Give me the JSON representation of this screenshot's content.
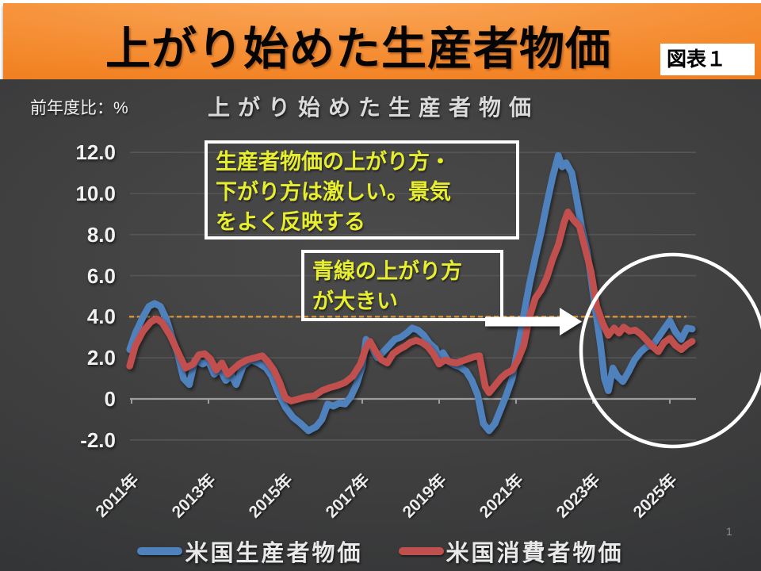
{
  "slide": {
    "title": "上がり始めた生産者物価",
    "figure_label": "図表１",
    "page_number": "1"
  },
  "chart": {
    "title": "上がり始めた生産者物価",
    "unit_label": "前年度比：%",
    "annotations": {
      "note1": "生産者物価の上がり方・\n下がり方は激しい。景気\nをよく反映する",
      "note2": "青線の上がり方\nが大きい"
    },
    "legend": [
      {
        "label": "米国生産者物価",
        "color": "#4f81bd"
      },
      {
        "label": "米国消費者物価",
        "color": "#c0504d"
      }
    ]
  },
  "chart_data": {
    "type": "line",
    "title": "上がり始めた生産者物価",
    "ylabel": "前年度比：%",
    "xlabel": "",
    "ylim": [
      -3,
      13
    ],
    "xlim": [
      2010.9,
      2025.7
    ],
    "grid": true,
    "legend_position": "bottom",
    "y_ticks": [
      {
        "label": "12.0",
        "value": 12
      },
      {
        "label": "10.0",
        "value": 10
      },
      {
        "label": "8.0",
        "value": 8
      },
      {
        "label": "6.0",
        "value": 6
      },
      {
        "label": "4.0",
        "value": 4
      },
      {
        "label": "2.0",
        "value": 2
      },
      {
        "label": "0",
        "value": 0
      },
      {
        "label": "-2.0",
        "value": -2
      }
    ],
    "x_ticks": [
      {
        "label": "2011年",
        "year": 2011
      },
      {
        "label": "2013年",
        "year": 2013
      },
      {
        "label": "2015年",
        "year": 2015
      },
      {
        "label": "2017年",
        "year": 2017
      },
      {
        "label": "2019年",
        "year": 2019
      },
      {
        "label": "2021年",
        "year": 2021
      },
      {
        "label": "2023年",
        "year": 2023
      },
      {
        "label": "2025年",
        "year": 2025
      }
    ],
    "threshold_line": {
      "value": 4.0,
      "color": "#e59a35",
      "style": "dashed"
    },
    "series": [
      {
        "name": "米国生産者物価",
        "color": "#4f81bd",
        "points": [
          [
            2010.95,
            2.4
          ],
          [
            2011.1,
            3.2
          ],
          [
            2011.3,
            4.0
          ],
          [
            2011.45,
            4.5
          ],
          [
            2011.6,
            4.65
          ],
          [
            2011.75,
            4.5
          ],
          [
            2011.9,
            3.9
          ],
          [
            2012.05,
            3.0
          ],
          [
            2012.2,
            2.2
          ],
          [
            2012.35,
            1.0
          ],
          [
            2012.5,
            0.7
          ],
          [
            2012.65,
            1.9
          ],
          [
            2012.85,
            1.7
          ],
          [
            2013.0,
            1.85
          ],
          [
            2013.15,
            1.2
          ],
          [
            2013.3,
            1.45
          ],
          [
            2013.45,
            0.9
          ],
          [
            2013.6,
            1.15
          ],
          [
            2013.72,
            0.7
          ],
          [
            2013.9,
            1.6
          ],
          [
            2014.1,
            1.9
          ],
          [
            2014.3,
            1.75
          ],
          [
            2014.5,
            1.5
          ],
          [
            2014.65,
            1.1
          ],
          [
            2014.8,
            0.35
          ],
          [
            2015.0,
            -0.4
          ],
          [
            2015.2,
            -0.9
          ],
          [
            2015.4,
            -1.2
          ],
          [
            2015.6,
            -1.55
          ],
          [
            2015.8,
            -1.35
          ],
          [
            2015.95,
            -1.0
          ],
          [
            2016.1,
            -0.25
          ],
          [
            2016.25,
            -0.35
          ],
          [
            2016.4,
            -0.2
          ],
          [
            2016.55,
            -0.25
          ],
          [
            2016.7,
            0.1
          ],
          [
            2016.85,
            0.7
          ],
          [
            2017.0,
            1.6
          ],
          [
            2017.1,
            2.9
          ],
          [
            2017.25,
            2.5
          ],
          [
            2017.4,
            2.0
          ],
          [
            2017.55,
            2.3
          ],
          [
            2017.7,
            2.6
          ],
          [
            2017.85,
            2.9
          ],
          [
            2018.0,
            3.0
          ],
          [
            2018.15,
            3.2
          ],
          [
            2018.3,
            3.45
          ],
          [
            2018.45,
            3.35
          ],
          [
            2018.6,
            3.1
          ],
          [
            2018.75,
            2.7
          ],
          [
            2018.9,
            2.45
          ],
          [
            2019.0,
            1.95
          ],
          [
            2019.1,
            2.25
          ],
          [
            2019.25,
            1.8
          ],
          [
            2019.4,
            1.65
          ],
          [
            2019.55,
            1.55
          ],
          [
            2019.7,
            1.35
          ],
          [
            2019.85,
            0.9
          ],
          [
            2020.0,
            0.2
          ],
          [
            2020.15,
            -1.2
          ],
          [
            2020.3,
            -1.55
          ],
          [
            2020.45,
            -1.2
          ],
          [
            2020.6,
            -0.5
          ],
          [
            2020.75,
            0.2
          ],
          [
            2020.9,
            1.0
          ],
          [
            2021.05,
            2.5
          ],
          [
            2021.2,
            4.1
          ],
          [
            2021.35,
            5.6
          ],
          [
            2021.5,
            6.9
          ],
          [
            2021.65,
            8.1
          ],
          [
            2021.8,
            9.5
          ],
          [
            2021.95,
            10.8
          ],
          [
            2022.1,
            11.85
          ],
          [
            2022.2,
            11.3
          ],
          [
            2022.3,
            11.5
          ],
          [
            2022.45,
            11.0
          ],
          [
            2022.55,
            10.0
          ],
          [
            2022.7,
            8.4
          ],
          [
            2022.85,
            7.2
          ],
          [
            2023.0,
            5.2
          ],
          [
            2023.1,
            3.9
          ],
          [
            2023.2,
            2.6
          ],
          [
            2023.3,
            1.0
          ],
          [
            2023.4,
            0.4
          ],
          [
            2023.52,
            1.5
          ],
          [
            2023.64,
            1.1
          ],
          [
            2023.78,
            0.85
          ],
          [
            2023.92,
            1.3
          ],
          [
            2024.08,
            1.9
          ],
          [
            2024.25,
            2.3
          ],
          [
            2024.4,
            2.55
          ],
          [
            2024.55,
            2.6
          ],
          [
            2024.7,
            3.0
          ],
          [
            2024.85,
            3.4
          ],
          [
            2025.0,
            3.8
          ],
          [
            2025.15,
            3.25
          ],
          [
            2025.3,
            2.9
          ],
          [
            2025.45,
            3.45
          ],
          [
            2025.58,
            3.4
          ]
        ]
      },
      {
        "name": "米国消費者物価",
        "color": "#c0504d",
        "points": [
          [
            2010.95,
            1.6
          ],
          [
            2011.1,
            2.6
          ],
          [
            2011.3,
            3.3
          ],
          [
            2011.5,
            3.75
          ],
          [
            2011.65,
            3.9
          ],
          [
            2011.8,
            3.7
          ],
          [
            2012.0,
            3.1
          ],
          [
            2012.2,
            2.3
          ],
          [
            2012.4,
            1.5
          ],
          [
            2012.6,
            1.7
          ],
          [
            2012.75,
            2.15
          ],
          [
            2012.9,
            2.2
          ],
          [
            2013.05,
            1.95
          ],
          [
            2013.2,
            1.4
          ],
          [
            2013.35,
            1.75
          ],
          [
            2013.5,
            1.2
          ],
          [
            2013.65,
            1.45
          ],
          [
            2013.8,
            1.7
          ],
          [
            2014.0,
            1.9
          ],
          [
            2014.2,
            2.0
          ],
          [
            2014.4,
            2.1
          ],
          [
            2014.55,
            1.8
          ],
          [
            2014.7,
            1.4
          ],
          [
            2014.85,
            0.8
          ],
          [
            2015.0,
            0.05
          ],
          [
            2015.15,
            -0.1
          ],
          [
            2015.35,
            0.0
          ],
          [
            2015.55,
            0.1
          ],
          [
            2015.75,
            0.15
          ],
          [
            2015.95,
            0.4
          ],
          [
            2016.15,
            0.55
          ],
          [
            2016.35,
            0.65
          ],
          [
            2016.55,
            0.8
          ],
          [
            2016.75,
            1.1
          ],
          [
            2016.95,
            1.7
          ],
          [
            2017.1,
            2.5
          ],
          [
            2017.2,
            2.8
          ],
          [
            2017.35,
            2.3
          ],
          [
            2017.5,
            1.9
          ],
          [
            2017.65,
            1.75
          ],
          [
            2017.8,
            2.2
          ],
          [
            2017.95,
            2.4
          ],
          [
            2018.1,
            2.55
          ],
          [
            2018.25,
            2.75
          ],
          [
            2018.4,
            2.85
          ],
          [
            2018.55,
            2.75
          ],
          [
            2018.7,
            2.55
          ],
          [
            2018.85,
            2.2
          ],
          [
            2019.0,
            1.7
          ],
          [
            2019.15,
            1.9
          ],
          [
            2019.3,
            1.8
          ],
          [
            2019.45,
            1.75
          ],
          [
            2019.6,
            1.85
          ],
          [
            2019.75,
            1.95
          ],
          [
            2019.9,
            2.05
          ],
          [
            2020.05,
            2.1
          ],
          [
            2020.2,
            0.6
          ],
          [
            2020.3,
            0.3
          ],
          [
            2020.45,
            0.65
          ],
          [
            2020.6,
            1.0
          ],
          [
            2020.75,
            1.25
          ],
          [
            2020.9,
            1.4
          ],
          [
            2021.05,
            1.9
          ],
          [
            2021.2,
            2.6
          ],
          [
            2021.35,
            4.0
          ],
          [
            2021.5,
            4.9
          ],
          [
            2021.65,
            5.3
          ],
          [
            2021.8,
            5.9
          ],
          [
            2021.95,
            6.8
          ],
          [
            2022.1,
            7.5
          ],
          [
            2022.25,
            8.6
          ],
          [
            2022.35,
            9.1
          ],
          [
            2022.5,
            8.7
          ],
          [
            2022.65,
            8.4
          ],
          [
            2022.8,
            7.3
          ],
          [
            2022.95,
            6.2
          ],
          [
            2023.1,
            4.5
          ],
          [
            2023.25,
            3.7
          ],
          [
            2023.4,
            3.1
          ],
          [
            2023.55,
            3.45
          ],
          [
            2023.68,
            3.2
          ],
          [
            2023.8,
            3.5
          ],
          [
            2023.95,
            3.3
          ],
          [
            2024.1,
            3.35
          ],
          [
            2024.25,
            3.15
          ],
          [
            2024.4,
            2.85
          ],
          [
            2024.55,
            2.55
          ],
          [
            2024.7,
            2.3
          ],
          [
            2024.85,
            2.75
          ],
          [
            2025.0,
            2.95
          ],
          [
            2025.15,
            2.6
          ],
          [
            2025.3,
            2.4
          ],
          [
            2025.45,
            2.65
          ],
          [
            2025.58,
            2.8
          ]
        ]
      }
    ]
  }
}
